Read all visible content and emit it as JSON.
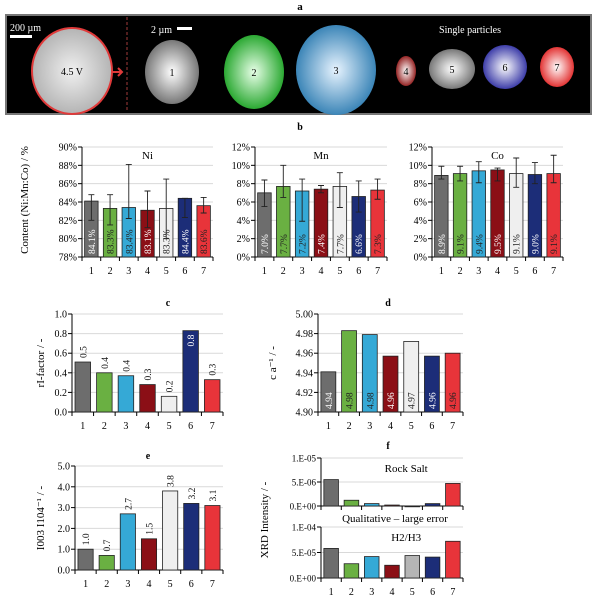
{
  "colors": [
    "#6d6d6d",
    "#6ab042",
    "#35a9d6",
    "#8b0f16",
    "#efefef",
    "#1c2d78",
    "#e8343a"
  ],
  "panel_a": {
    "label": "a",
    "scale_left": "200 µm",
    "scale_right": "2 µm",
    "voltage_label": "4.5 V",
    "single_particles_label": "Single particles",
    "particle_labels": [
      "1",
      "2",
      "3",
      "4",
      "5",
      "6",
      "7"
    ]
  },
  "chart_data": [
    {
      "id": "b-ni",
      "panel": "b",
      "type": "bar",
      "title": "Ni",
      "ylabel": "Content (Ni:Mn:Co) / %",
      "categories": [
        "1",
        "2",
        "3",
        "4",
        "5",
        "6",
        "7"
      ],
      "values": [
        84.1,
        83.3,
        83.4,
        83.1,
        83.3,
        84.4,
        83.6
      ],
      "value_labels": [
        "84.1%",
        "83.3%",
        "83.4%",
        "83.1%",
        "83.3%",
        "84.4%",
        "83.6%"
      ],
      "error_range": [
        [
          82.0,
          84.8
        ],
        [
          81.5,
          84.8
        ],
        [
          82.2,
          88.1
        ],
        [
          81.2,
          85.2
        ],
        [
          80.0,
          86.5
        ],
        [
          82.3,
          84.4
        ],
        [
          82.8,
          84.5
        ]
      ],
      "ylim": [
        78,
        90
      ],
      "yticks": [
        78,
        80,
        82,
        84,
        86,
        88,
        90
      ],
      "ytick_labels": [
        "78%",
        "80%",
        "82%",
        "84%",
        "86%",
        "88%",
        "90%"
      ],
      "grid": true
    },
    {
      "id": "b-mn",
      "panel": "b",
      "type": "bar",
      "title": "Mn",
      "categories": [
        "1",
        "2",
        "3",
        "4",
        "5",
        "6",
        "7"
      ],
      "values": [
        7.0,
        7.7,
        7.2,
        7.4,
        7.7,
        6.6,
        7.3
      ],
      "value_labels": [
        "7.0%",
        "7.7%",
        "7.2%",
        "7.4%",
        "7.7%",
        "6.6%",
        "7.3%"
      ],
      "error_range": [
        [
          5.5,
          8.4
        ],
        [
          6.5,
          10.0
        ],
        [
          3.9,
          8.5
        ],
        [
          7.0,
          7.8
        ],
        [
          5.4,
          9.2
        ],
        [
          4.9,
          8.3
        ],
        [
          6.3,
          8.5
        ]
      ],
      "ylim": [
        0,
        12
      ],
      "yticks": [
        0,
        2,
        4,
        6,
        8,
        10,
        12
      ],
      "ytick_labels": [
        "0%",
        "2%",
        "4%",
        "6%",
        "8%",
        "10%",
        "12%"
      ],
      "grid": true
    },
    {
      "id": "b-co",
      "panel": "b",
      "type": "bar",
      "title": "Co",
      "categories": [
        "1",
        "2",
        "3",
        "4",
        "5",
        "6",
        "7"
      ],
      "values": [
        8.9,
        9.1,
        9.4,
        9.5,
        9.1,
        9.0,
        9.1
      ],
      "value_labels": [
        "8.9%",
        "9.1%",
        "9.4%",
        "9.5%",
        "9.1%",
        "9.0%",
        "9.1%"
      ],
      "error_range": [
        [
          8.5,
          9.9
        ],
        [
          8.3,
          9.9
        ],
        [
          8.1,
          10.4
        ],
        [
          8.3,
          9.7
        ],
        [
          7.6,
          10.8
        ],
        [
          8.0,
          10.3
        ],
        [
          8.1,
          11.1
        ]
      ],
      "ylim": [
        0,
        12
      ],
      "yticks": [
        0,
        2,
        4,
        6,
        8,
        10,
        12
      ],
      "ytick_labels": [
        "0%",
        "2%",
        "4%",
        "6%",
        "8%",
        "10%",
        "12%"
      ],
      "grid": true
    },
    {
      "id": "c",
      "panel": "c",
      "type": "bar",
      "ylabel": "rI-factor / -",
      "categories": [
        "1",
        "2",
        "3",
        "4",
        "5",
        "6",
        "7"
      ],
      "values": [
        0.51,
        0.4,
        0.37,
        0.28,
        0.16,
        0.83,
        0.33
      ],
      "value_labels": [
        "0.5",
        "0.4",
        "0.4",
        "0.3",
        "0.2",
        "0.8",
        "0.3"
      ],
      "ylim": [
        0,
        1.0
      ],
      "yticks": [
        0,
        0.2,
        0.4,
        0.6,
        0.8,
        1.0
      ],
      "ytick_labels": [
        "0.0",
        "0.2",
        "0.4",
        "0.6",
        "0.8",
        "1.0"
      ],
      "grid": true
    },
    {
      "id": "d",
      "panel": "d",
      "type": "bar",
      "ylabel": "c a⁻¹ / -",
      "categories": [
        "1",
        "2",
        "3",
        "4",
        "5",
        "6",
        "7"
      ],
      "values": [
        4.941,
        4.983,
        4.979,
        4.957,
        4.972,
        4.957,
        4.96
      ],
      "value_labels": [
        "4.94",
        "4.98",
        "4.98",
        "4.96",
        "4.97",
        "4.96",
        "4.96"
      ],
      "ylim": [
        4.9,
        5.0
      ],
      "yticks": [
        4.9,
        4.92,
        4.94,
        4.96,
        4.98,
        5.0
      ],
      "ytick_labels": [
        "4.90",
        "4.92",
        "4.94",
        "4.96",
        "4.98",
        "5.00"
      ],
      "grid": true
    },
    {
      "id": "e",
      "panel": "e",
      "type": "bar",
      "ylabel": "I003 I104⁻¹ / -",
      "categories": [
        "1",
        "2",
        "3",
        "4",
        "5",
        "6",
        "7"
      ],
      "values": [
        1.0,
        0.7,
        2.7,
        1.5,
        3.8,
        3.2,
        3.1
      ],
      "value_labels": [
        "1.0",
        "0.7",
        "2.7",
        "1.5",
        "3.8",
        "3.2",
        "3.1"
      ],
      "ylim": [
        0,
        5.0
      ],
      "yticks": [
        0,
        1,
        2,
        3,
        4,
        5
      ],
      "ytick_labels": [
        "0.0",
        "1.0",
        "2.0",
        "3.0",
        "4.0",
        "5.0"
      ],
      "grid": true
    },
    {
      "id": "f-rocksalt",
      "panel": "f",
      "type": "bar",
      "title": "Rock Salt",
      "ylabel": "XRD Intensity / -",
      "categories": [
        "1",
        "2",
        "3",
        "4",
        "5",
        "6",
        "7"
      ],
      "values": [
        5.5e-06,
        1.2e-06,
        5e-07,
        2e-07,
        0,
        5e-07,
        4.7e-06
      ],
      "ylim": [
        0,
        1e-05
      ],
      "yticks": [
        0,
        5e-06,
        1e-05
      ],
      "ytick_labels": [
        "0.E+00",
        "5.E-06",
        "1.E-05"
      ],
      "grid": true,
      "annotation": "Qualitative – large error"
    },
    {
      "id": "f-h2h3",
      "panel": "f",
      "type": "bar",
      "title": "H2/H3",
      "categories": [
        "1",
        "2",
        "3",
        "4",
        "5",
        "6",
        "7"
      ],
      "values": [
        5.8e-05,
        2.8e-05,
        4.2e-05,
        2.5e-05,
        4.4e-05,
        4.1e-05,
        7.2e-05
      ],
      "bar5_color": "#b5b5b5",
      "ylim": [
        0,
        0.0001
      ],
      "yticks": [
        0,
        5e-05,
        0.0001
      ],
      "ytick_labels": [
        "0.E+00",
        "5.E-05",
        "1.E-04"
      ],
      "grid": true
    }
  ]
}
